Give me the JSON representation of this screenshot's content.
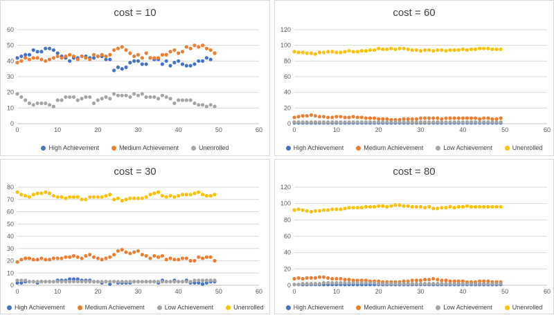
{
  "colors": {
    "high": "#4472C4",
    "medium": "#ED7D31",
    "low": "#A5A5A5",
    "unenrolled": "#FFC000",
    "grid": "#d9d9d9",
    "axis": "#bfbfbf"
  },
  "chart_data": [
    {
      "type": "scatter",
      "title": "cost = 10",
      "xlim": [
        0,
        60
      ],
      "ylim": [
        0,
        60
      ],
      "xticks": [
        "0",
        "10",
        "20",
        "30",
        "40",
        "50",
        "60"
      ],
      "yticks": [
        "0",
        "10",
        "20",
        "30",
        "40",
        "50",
        "60"
      ],
      "legend": "bottom",
      "series": [
        {
          "name": "High Achievement",
          "key": "high",
          "values": [
            42,
            43,
            44,
            44,
            47,
            46,
            46,
            48,
            48,
            47,
            45,
            43,
            42,
            40,
            42,
            42,
            43,
            43,
            42,
            42,
            43,
            43,
            41,
            41,
            34,
            36,
            35,
            36,
            39,
            40,
            40,
            38,
            38,
            42,
            41,
            41,
            38,
            40,
            37,
            39,
            40,
            38,
            37,
            37,
            38,
            40,
            40,
            42,
            41,
            45
          ]
        },
        {
          "name": "Medium Achievement",
          "key": "medium",
          "values": [
            39,
            40,
            42,
            41,
            42,
            42,
            41,
            40,
            41,
            42,
            43,
            42,
            43,
            44,
            43,
            41,
            43,
            42,
            41,
            44,
            43,
            44,
            43,
            44,
            47,
            48,
            49,
            47,
            45,
            43,
            44,
            42,
            45,
            42,
            42,
            42,
            44,
            44,
            46,
            47,
            45,
            46,
            49,
            48,
            50,
            49,
            50,
            48,
            47,
            45
          ]
        },
        {
          "name": "Unenrolled",
          "key": "low",
          "values": [
            19,
            17,
            15,
            13,
            12,
            13,
            13,
            13,
            12,
            11,
            15,
            15,
            17,
            17,
            17,
            15,
            16,
            17,
            17,
            13,
            15,
            16,
            17,
            16,
            19,
            18,
            18,
            18,
            17,
            19,
            18,
            19,
            17,
            17,
            17,
            16,
            18,
            17,
            16,
            13,
            15,
            15,
            15,
            15,
            13,
            12,
            12,
            11,
            12,
            11
          ]
        }
      ]
    },
    {
      "type": "scatter",
      "title": "cost = 60",
      "xlim": [
        0,
        60
      ],
      "ylim": [
        0,
        120
      ],
      "xticks": [
        "0",
        "10",
        "20",
        "30",
        "40",
        "50",
        "60"
      ],
      "yticks": [
        "0",
        "20",
        "40",
        "60",
        "80",
        "100",
        "120"
      ],
      "legend": "bottom",
      "series": [
        {
          "name": "High Achievement",
          "key": "high",
          "values": [
            1,
            1,
            1,
            1,
            1,
            1,
            1,
            1,
            1,
            1,
            1,
            1,
            1,
            1,
            1,
            1,
            1,
            1,
            1,
            1,
            1,
            1,
            1,
            1,
            1,
            1,
            1,
            1,
            1,
            1,
            1,
            1,
            1,
            1,
            1,
            1,
            1,
            1,
            1,
            1,
            1,
            1,
            1,
            1,
            1,
            1,
            1,
            1,
            1,
            1
          ]
        },
        {
          "name": "Medium Achievement",
          "key": "medium",
          "values": [
            8,
            9,
            10,
            10,
            11,
            10,
            9,
            9,
            8,
            8,
            9,
            9,
            8,
            8,
            9,
            8,
            8,
            7,
            7,
            7,
            6,
            6,
            6,
            5,
            5,
            5,
            6,
            6,
            6,
            6,
            7,
            7,
            7,
            7,
            7,
            6,
            7,
            7,
            7,
            7,
            7,
            7,
            7,
            7,
            6,
            7,
            7,
            6,
            6,
            7
          ]
        },
        {
          "name": "Low Achievement",
          "key": "low",
          "values": [
            2,
            2,
            2,
            2,
            2,
            2,
            2,
            2,
            2,
            2,
            2,
            2,
            2,
            2,
            2,
            2,
            2,
            2,
            2,
            2,
            2,
            2,
            2,
            2,
            2,
            2,
            2,
            2,
            2,
            2,
            2,
            2,
            2,
            2,
            2,
            2,
            2,
            2,
            2,
            2,
            2,
            2,
            2,
            2,
            2,
            2,
            2,
            2,
            2,
            2
          ]
        },
        {
          "name": "Unenrolled",
          "key": "unenrolled",
          "values": [
            92,
            91,
            91,
            90,
            90,
            89,
            91,
            91,
            92,
            92,
            91,
            91,
            92,
            93,
            92,
            92,
            93,
            93,
            94,
            94,
            96,
            95,
            95,
            96,
            95,
            96,
            96,
            95,
            94,
            94,
            93,
            94,
            94,
            93,
            94,
            94,
            93,
            94,
            94,
            94,
            95,
            94,
            95,
            95,
            96,
            96,
            96,
            95,
            95,
            95
          ]
        }
      ]
    },
    {
      "type": "scatter",
      "title": "cost = 30",
      "xlim": [
        0,
        60
      ],
      "ylim": [
        0,
        80
      ],
      "xticks": [
        "0",
        "10",
        "20",
        "30",
        "40",
        "50",
        "60"
      ],
      "yticks": [
        "0",
        "10",
        "20",
        "30",
        "40",
        "50",
        "60",
        "70",
        "80"
      ],
      "legend": "bottom",
      "series": [
        {
          "name": "High Achievement",
          "key": "high",
          "values": [
            2,
            2,
            3,
            3,
            3,
            2,
            3,
            3,
            3,
            3,
            4,
            4,
            4,
            5,
            5,
            5,
            4,
            4,
            4,
            3,
            3,
            2,
            3,
            1,
            3,
            2,
            2,
            2,
            2,
            3,
            3,
            3,
            3,
            3,
            3,
            2,
            4,
            3,
            3,
            4,
            3,
            3,
            4,
            2,
            2,
            2,
            1,
            2,
            3,
            3
          ]
        },
        {
          "name": "Medium Achievement",
          "key": "medium",
          "values": [
            19,
            21,
            22,
            22,
            21,
            21,
            22,
            21,
            21,
            22,
            22,
            22,
            23,
            23,
            24,
            23,
            22,
            24,
            25,
            23,
            22,
            21,
            22,
            23,
            25,
            28,
            29,
            27,
            26,
            27,
            28,
            25,
            24,
            22,
            24,
            23,
            24,
            21,
            22,
            21,
            21,
            22,
            22,
            20,
            20,
            23,
            22,
            23,
            23,
            20
          ]
        },
        {
          "name": "Low Achievement",
          "key": "low",
          "values": [
            4,
            4,
            4,
            3,
            3,
            3,
            3,
            3,
            3,
            3,
            3,
            3,
            3,
            3,
            3,
            3,
            3,
            3,
            3,
            3,
            3,
            3,
            3,
            3,
            3,
            3,
            3,
            3,
            3,
            3,
            3,
            3,
            3,
            3,
            3,
            3,
            3,
            3,
            3,
            3,
            3,
            3,
            3,
            3,
            4,
            4,
            4,
            4,
            4,
            4
          ]
        },
        {
          "name": "Unenrolled",
          "key": "unenrolled",
          "values": [
            76,
            74,
            73,
            72,
            74,
            75,
            75,
            76,
            75,
            73,
            72,
            72,
            71,
            72,
            72,
            72,
            70,
            70,
            72,
            72,
            72,
            72,
            73,
            74,
            70,
            71,
            69,
            70,
            71,
            71,
            71,
            71,
            72,
            74,
            75,
            76,
            73,
            72,
            73,
            72,
            73,
            74,
            74,
            74,
            75,
            76,
            74,
            73,
            73,
            74
          ]
        }
      ]
    },
    {
      "type": "scatter",
      "title": "cost = 80",
      "xlim": [
        0,
        60
      ],
      "ylim": [
        0,
        120
      ],
      "xticks": [
        "0",
        "10",
        "20",
        "30",
        "40",
        "50",
        "60"
      ],
      "yticks": [
        "0",
        "20",
        "40",
        "60",
        "80",
        "100",
        "120"
      ],
      "legend": "bottom",
      "series": [
        {
          "name": "High Achievement",
          "key": "high",
          "values": [
            1,
            1,
            1,
            1,
            1,
            1,
            1,
            1,
            1,
            1,
            1,
            1,
            1,
            1,
            1,
            1,
            1,
            1,
            1,
            1,
            1,
            1,
            1,
            1,
            1,
            1,
            1,
            1,
            1,
            1,
            1,
            1,
            1,
            1,
            1,
            1,
            1,
            1,
            1,
            1,
            1,
            1,
            1,
            1,
            1,
            1,
            1,
            1,
            1,
            1
          ]
        },
        {
          "name": "Medium Achievement",
          "key": "medium",
          "values": [
            8,
            9,
            8,
            9,
            9,
            9,
            10,
            10,
            9,
            8,
            8,
            8,
            7,
            7,
            6,
            6,
            6,
            6,
            5,
            5,
            5,
            4,
            4,
            4,
            4,
            4,
            5,
            5,
            6,
            6,
            6,
            7,
            7,
            8,
            7,
            6,
            6,
            5,
            5,
            5,
            5,
            4,
            4,
            4,
            5,
            5,
            5,
            4,
            4,
            4
          ]
        },
        {
          "name": "Low Achievement",
          "key": "low",
          "values": [
            1,
            1,
            2,
            2,
            2,
            2,
            2,
            3,
            3,
            3,
            3,
            3,
            3,
            3,
            3,
            3,
            3,
            3,
            3,
            3,
            2,
            2,
            2,
            2,
            2,
            2,
            2,
            2,
            2,
            2,
            2,
            2,
            2,
            2,
            2,
            2,
            2,
            2,
            2,
            2,
            2,
            2,
            2,
            2,
            2,
            2,
            2,
            2,
            2,
            2
          ]
        },
        {
          "name": "Unenrolled",
          "key": "unenrolled",
          "values": [
            92,
            93,
            92,
            91,
            90,
            91,
            91,
            92,
            92,
            93,
            93,
            93,
            94,
            95,
            95,
            95,
            95,
            96,
            96,
            96,
            97,
            97,
            96,
            97,
            98,
            98,
            97,
            97,
            96,
            96,
            96,
            95,
            96,
            94,
            94,
            95,
            95,
            96,
            95,
            96,
            96,
            97,
            96,
            96,
            96,
            96,
            96,
            96,
            96,
            96
          ]
        }
      ]
    }
  ]
}
